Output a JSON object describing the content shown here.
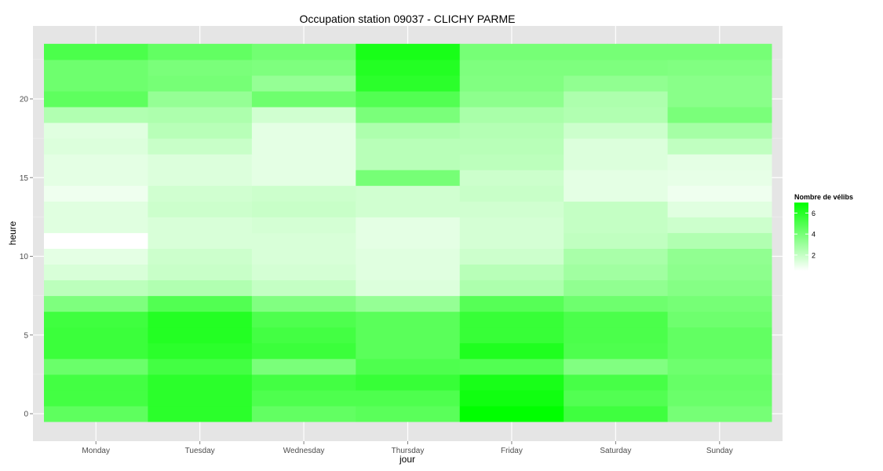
{
  "chart_data": {
    "type": "heatmap",
    "title": "Occupation station 09037 - CLICHY PARME",
    "xlabel": "jour",
    "ylabel": "heure",
    "categories": [
      "Monday",
      "Tuesday",
      "Wednesday",
      "Thursday",
      "Friday",
      "Saturday",
      "Sunday"
    ],
    "y_values": [
      0,
      1,
      2,
      3,
      4,
      5,
      6,
      7,
      8,
      9,
      10,
      11,
      12,
      13,
      14,
      15,
      16,
      17,
      18,
      19,
      20,
      21,
      22,
      23
    ],
    "y_ticks": [
      0,
      5,
      10,
      15,
      20
    ],
    "ylim": [
      -0.5,
      23.5
    ],
    "grid": true,
    "color_low": "#ffffff",
    "color_high": "#00ff00",
    "value_range": [
      0.5,
      7
    ],
    "values": [
      [
        4.6,
        5.9,
        4.5,
        4.7,
        7.0,
        5.4,
        4.0
      ],
      [
        5.3,
        5.9,
        5.0,
        5.0,
        6.6,
        4.9,
        4.3
      ],
      [
        5.3,
        5.9,
        5.3,
        5.6,
        6.4,
        5.2,
        4.4
      ],
      [
        4.3,
        5.3,
        3.9,
        5.0,
        4.9,
        3.7,
        4.2
      ],
      [
        5.5,
        5.9,
        5.5,
        4.7,
        6.2,
        5.0,
        4.5
      ],
      [
        5.5,
        6.1,
        5.3,
        4.7,
        5.6,
        5.1,
        4.5
      ],
      [
        5.4,
        6.1,
        5.0,
        4.7,
        5.6,
        5.1,
        4.2
      ],
      [
        3.8,
        4.9,
        3.7,
        3.2,
        4.8,
        4.2,
        4.0
      ],
      [
        2.2,
        2.5,
        2.0,
        1.4,
        2.6,
        3.3,
        3.6
      ],
      [
        1.5,
        1.9,
        1.6,
        1.3,
        2.3,
        2.9,
        3.4
      ],
      [
        1.2,
        1.8,
        1.5,
        1.3,
        1.8,
        2.7,
        3.3
      ],
      [
        0.5,
        1.5,
        1.5,
        1.2,
        1.6,
        2.1,
        2.5
      ],
      [
        1.3,
        1.5,
        1.6,
        1.2,
        1.6,
        2.0,
        1.8
      ],
      [
        1.3,
        1.8,
        1.9,
        1.7,
        1.7,
        2.0,
        1.3
      ],
      [
        0.9,
        1.7,
        1.8,
        1.7,
        1.9,
        1.2,
        0.9
      ],
      [
        1.2,
        1.4,
        1.2,
        4.0,
        1.8,
        1.2,
        1.1
      ],
      [
        1.2,
        1.4,
        1.2,
        2.3,
        2.2,
        1.4,
        1.2
      ],
      [
        1.4,
        1.9,
        1.2,
        2.3,
        2.3,
        1.4,
        2.1
      ],
      [
        1.3,
        2.3,
        1.2,
        2.6,
        2.4,
        1.8,
        2.8
      ],
      [
        2.5,
        2.6,
        1.7,
        3.9,
        2.7,
        2.5,
        3.9
      ],
      [
        4.6,
        3.2,
        4.2,
        4.9,
        3.4,
        2.6,
        3.5
      ],
      [
        4.2,
        4.0,
        3.2,
        5.9,
        3.7,
        3.3,
        3.5
      ],
      [
        4.2,
        3.9,
        3.8,
        6.1,
        3.8,
        3.8,
        3.7
      ],
      [
        5.1,
        4.5,
        4.1,
        6.4,
        4.0,
        4.0,
        4.0
      ]
    ],
    "legend": {
      "title": "Nombre de vélibs",
      "ticks": [
        "2",
        "4",
        "6"
      ],
      "tick_values": [
        2,
        4,
        6
      ]
    }
  }
}
